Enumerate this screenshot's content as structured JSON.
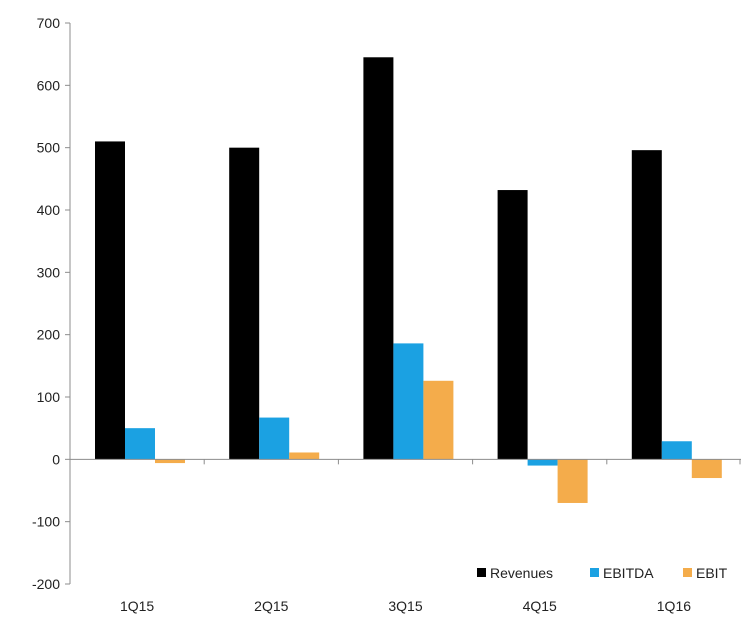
{
  "chart_data": {
    "type": "bar",
    "categories": [
      "1Q15",
      "2Q15",
      "3Q15",
      "4Q15",
      "1Q16"
    ],
    "series": [
      {
        "name": "Revenues",
        "color": "#000000",
        "values": [
          510,
          500,
          645,
          432,
          496
        ]
      },
      {
        "name": "EBITDA",
        "color": "#1ba1e2",
        "values": [
          50,
          67,
          186,
          -10,
          29
        ]
      },
      {
        "name": "EBIT",
        "color": "#f4ac4b",
        "values": [
          -6,
          11,
          126,
          -70,
          -30
        ]
      }
    ],
    "ylim": [
      -200,
      700
    ],
    "yticks": [
      -200,
      -100,
      0,
      100,
      200,
      300,
      400,
      500,
      600,
      700
    ],
    "grid": false,
    "legend_position": "bottom-right"
  }
}
